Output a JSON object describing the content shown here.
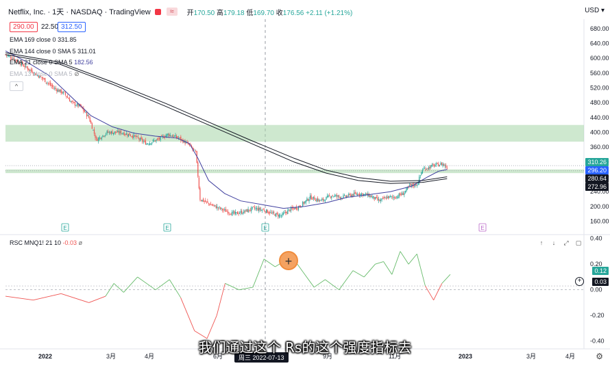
{
  "header": {
    "title": "Netflix, Inc. · 1天 · NASDAQ · TradingView",
    "open_label": "开",
    "open": "170.50",
    "high_label": "高",
    "high": "179.18",
    "low_label": "低",
    "low": "169.70",
    "close_label": "收",
    "close": "176.56",
    "change": "+2.11 (+1.21%)",
    "wave_icon": "≈"
  },
  "trade": {
    "sell": "290.00",
    "spread": "22.50",
    "buy": "312.50"
  },
  "indicators": [
    {
      "label": "EMA 169 close 0",
      "value": "331.85"
    },
    {
      "label": "EMA 144 close 0 SMA 5",
      "value": "311.01"
    },
    {
      "label": "EMA 21 close 0 SMA 5",
      "value": "182.56"
    },
    {
      "label": "EMA 13 close 0 SMA 5",
      "value": ""
    }
  ],
  "collapse_icon": "^",
  "currency": "USD",
  "price_badges": [
    {
      "text": "310.26",
      "bg": "#26a69a"
    },
    {
      "text": "296.20",
      "bg": "#2962ff"
    },
    {
      "text": "280.64",
      "bg": "#131722"
    },
    {
      "text": "272.96",
      "bg": "#131722"
    }
  ],
  "rsc": {
    "label": "RSC MNQ1! 21 10",
    "value": "-0.03",
    "badges": [
      "0.12",
      "0.03"
    ]
  },
  "earnings_marker": "E",
  "date_tag": "周三 2022-07-13",
  "subtitle": "我们通过这个 Rs的这个强度指标去",
  "cursor_icon": "+",
  "colors": {
    "up": "#26a69a",
    "down": "#ef5350",
    "zone": "#a5d6a7",
    "ema13": "#3f3f9e",
    "ema_long": "#131722"
  },
  "chart_data": {
    "type": "candlestick",
    "y_ticks": [
      680,
      640,
      600,
      560,
      520,
      480,
      440,
      400,
      360,
      320,
      280,
      240,
      200,
      160
    ],
    "ylim": [
      124,
      702
    ],
    "x_ticks": [
      "2022",
      "3月",
      "4月",
      "6月",
      "7月",
      "9月",
      "11月",
      "2023",
      "3月",
      "4月"
    ],
    "zones": [
      [
        375,
        420
      ],
      [
        290,
        300
      ]
    ],
    "close_path": [
      [
        0,
        610
      ],
      [
        10,
        595
      ],
      [
        22,
        570
      ],
      [
        35,
        545
      ],
      [
        45,
        520
      ],
      [
        55,
        505
      ],
      [
        62,
        480
      ],
      [
        70,
        470
      ],
      [
        78,
        440
      ],
      [
        85,
        380
      ],
      [
        95,
        400
      ],
      [
        108,
        400
      ],
      [
        120,
        390
      ],
      [
        132,
        370
      ],
      [
        142,
        380
      ],
      [
        152,
        395
      ],
      [
        162,
        385
      ],
      [
        172,
        365
      ],
      [
        178,
        345
      ],
      [
        182,
        220
      ],
      [
        192,
        205
      ],
      [
        204,
        190
      ],
      [
        214,
        180
      ],
      [
        222,
        185
      ],
      [
        232,
        195
      ],
      [
        242,
        190
      ],
      [
        250,
        180
      ],
      [
        258,
        175
      ],
      [
        265,
        190
      ],
      [
        275,
        200
      ],
      [
        285,
        225
      ],
      [
        295,
        215
      ],
      [
        305,
        230
      ],
      [
        315,
        225
      ],
      [
        322,
        230
      ],
      [
        330,
        235
      ],
      [
        340,
        230
      ],
      [
        350,
        215
      ],
      [
        357,
        225
      ],
      [
        364,
        225
      ],
      [
        372,
        235
      ],
      [
        378,
        255
      ],
      [
        385,
        260
      ],
      [
        390,
        300
      ],
      [
        400,
        310
      ],
      [
        409,
        315
      ],
      [
        413,
        305
      ]
    ],
    "ema13": [
      [
        0,
        620
      ],
      [
        20,
        590
      ],
      [
        40,
        555
      ],
      [
        60,
        500
      ],
      [
        80,
        445
      ],
      [
        100,
        415
      ],
      [
        120,
        398
      ],
      [
        140,
        390
      ],
      [
        160,
        385
      ],
      [
        172,
        370
      ],
      [
        180,
        330
      ],
      [
        190,
        270
      ],
      [
        205,
        235
      ],
      [
        220,
        215
      ],
      [
        240,
        205
      ],
      [
        260,
        195
      ],
      [
        280,
        200
      ],
      [
        300,
        210
      ],
      [
        320,
        225
      ],
      [
        340,
        232
      ],
      [
        360,
        240
      ],
      [
        380,
        255
      ],
      [
        395,
        280
      ],
      [
        405,
        295
      ],
      [
        413,
        300
      ]
    ],
    "ema144": [
      [
        0,
        610
      ],
      [
        50,
        585
      ],
      [
        100,
        530
      ],
      [
        150,
        470
      ],
      [
        190,
        420
      ],
      [
        230,
        370
      ],
      [
        270,
        320
      ],
      [
        300,
        290
      ],
      [
        330,
        270
      ],
      [
        360,
        262
      ],
      [
        390,
        265
      ],
      [
        413,
        275
      ]
    ],
    "ema169": [
      [
        0,
        615
      ],
      [
        50,
        590
      ],
      [
        100,
        536
      ],
      [
        150,
        478
      ],
      [
        190,
        428
      ],
      [
        230,
        378
      ],
      [
        270,
        330
      ],
      [
        300,
        298
      ],
      [
        330,
        278
      ],
      [
        360,
        268
      ],
      [
        390,
        270
      ],
      [
        413,
        280
      ]
    ],
    "rsc_ylim": [
      -0.45,
      0.42
    ],
    "rsc_y_ticks": [
      0.4,
      0.2,
      0.0,
      -0.2,
      -0.4
    ],
    "rsc": [
      [
        0,
        -0.05
      ],
      [
        20,
        -0.08
      ],
      [
        40,
        -0.03
      ],
      [
        60,
        -0.1
      ],
      [
        72,
        -0.05
      ],
      [
        78,
        0.05
      ],
      [
        85,
        -0.02
      ],
      [
        95,
        0.1
      ],
      [
        108,
        0.0
      ],
      [
        118,
        0.08
      ],
      [
        126,
        -0.06
      ],
      [
        136,
        -0.32
      ],
      [
        145,
        -0.38
      ],
      [
        152,
        -0.2
      ],
      [
        158,
        0.05
      ],
      [
        168,
        0.0
      ],
      [
        178,
        0.02
      ],
      [
        186,
        0.24
      ],
      [
        194,
        0.18
      ],
      [
        206,
        0.26
      ],
      [
        214,
        0.14
      ],
      [
        222,
        0.02
      ],
      [
        230,
        0.08
      ],
      [
        240,
        0.0
      ],
      [
        250,
        0.15
      ],
      [
        258,
        0.1
      ],
      [
        266,
        0.2
      ],
      [
        272,
        0.22
      ],
      [
        278,
        0.12
      ],
      [
        284,
        0.3
      ],
      [
        290,
        0.2
      ],
      [
        296,
        0.28
      ],
      [
        302,
        0.03
      ],
      [
        308,
        -0.08
      ],
      [
        314,
        0.05
      ],
      [
        320,
        0.12
      ]
    ]
  }
}
